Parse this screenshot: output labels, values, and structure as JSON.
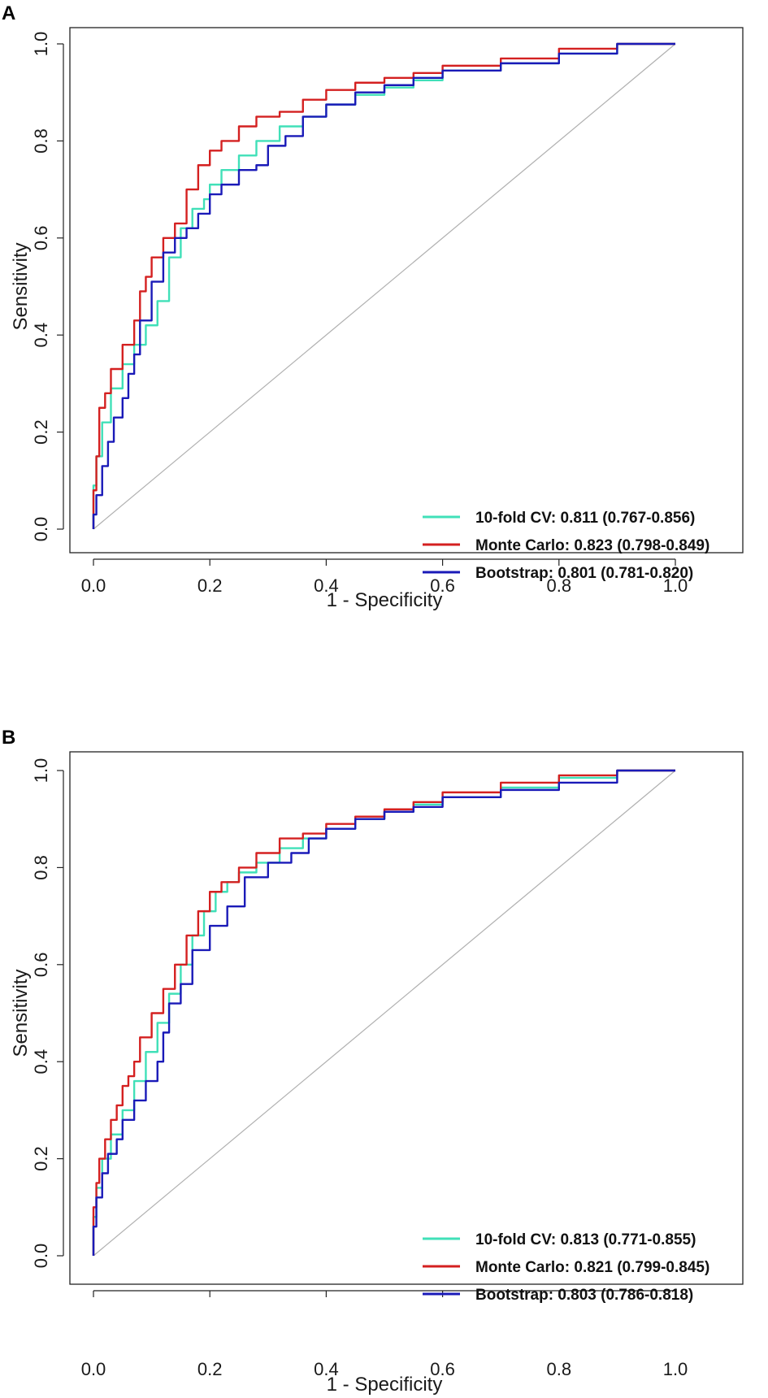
{
  "chart_data": [
    {
      "type": "line",
      "panel": "A",
      "xlabel": "1 - Specificity",
      "ylabel": "Sensitivity",
      "xlim": [
        0,
        1
      ],
      "ylim": [
        0,
        1
      ],
      "xticks": [
        "0.0",
        "0.2",
        "0.4",
        "0.6",
        "0.8",
        "1.0"
      ],
      "yticks": [
        "0.0",
        "0.2",
        "0.4",
        "0.6",
        "0.8",
        "1.0"
      ],
      "reference_line": {
        "x": [
          0,
          1
        ],
        "y": [
          0,
          1
        ],
        "color": "#b0b0b0"
      },
      "legend_position": "bottom-right",
      "series": [
        {
          "name": "10-fold CV",
          "label": "10-fold CV: 0.811 (0.767-0.856)",
          "color": "#40e0b8",
          "x": [
            0,
            0.005,
            0.015,
            0.03,
            0.05,
            0.07,
            0.09,
            0.11,
            0.13,
            0.15,
            0.17,
            0.19,
            0.2,
            0.22,
            0.25,
            0.28,
            0.32,
            0.36,
            0.4,
            0.45,
            0.5,
            0.55,
            0.6,
            0.7,
            0.8,
            0.9,
            1.0
          ],
          "y": [
            0,
            0.09,
            0.15,
            0.22,
            0.29,
            0.34,
            0.38,
            0.42,
            0.47,
            0.56,
            0.62,
            0.66,
            0.68,
            0.71,
            0.74,
            0.77,
            0.8,
            0.83,
            0.85,
            0.875,
            0.895,
            0.91,
            0.925,
            0.945,
            0.96,
            0.98,
            1.0
          ]
        },
        {
          "name": "Monte Carlo",
          "label": "Monte Carlo: 0.823 (0.798-0.849)",
          "color": "#d42020",
          "x": [
            0,
            0.005,
            0.01,
            0.02,
            0.03,
            0.05,
            0.07,
            0.08,
            0.09,
            0.1,
            0.12,
            0.14,
            0.16,
            0.18,
            0.2,
            0.22,
            0.25,
            0.28,
            0.32,
            0.36,
            0.4,
            0.45,
            0.5,
            0.55,
            0.6,
            0.7,
            0.8,
            0.9,
            1.0
          ],
          "y": [
            0,
            0.08,
            0.15,
            0.25,
            0.28,
            0.33,
            0.38,
            0.43,
            0.49,
            0.52,
            0.56,
            0.6,
            0.63,
            0.7,
            0.75,
            0.78,
            0.8,
            0.83,
            0.85,
            0.86,
            0.885,
            0.905,
            0.92,
            0.93,
            0.94,
            0.955,
            0.97,
            0.99,
            1.0
          ]
        },
        {
          "name": "Bootstrap",
          "label": "Bootstrap: 0.801 (0.781-0.820)",
          "color": "#1a1ab8",
          "x": [
            0,
            0.005,
            0.015,
            0.025,
            0.035,
            0.05,
            0.06,
            0.07,
            0.08,
            0.1,
            0.12,
            0.14,
            0.16,
            0.18,
            0.2,
            0.22,
            0.25,
            0.28,
            0.3,
            0.33,
            0.36,
            0.4,
            0.45,
            0.5,
            0.55,
            0.6,
            0.7,
            0.8,
            0.9,
            1.0
          ],
          "y": [
            0,
            0.03,
            0.07,
            0.13,
            0.18,
            0.23,
            0.27,
            0.32,
            0.36,
            0.43,
            0.51,
            0.57,
            0.6,
            0.62,
            0.65,
            0.69,
            0.71,
            0.74,
            0.75,
            0.79,
            0.81,
            0.85,
            0.875,
            0.9,
            0.915,
            0.93,
            0.945,
            0.96,
            0.98,
            1.0
          ]
        }
      ]
    },
    {
      "type": "line",
      "panel": "B",
      "xlabel": "1 - Specificity",
      "ylabel": "Sensitivity",
      "xlim": [
        0,
        1
      ],
      "ylim": [
        0,
        1
      ],
      "xticks": [
        "0.0",
        "0.2",
        "0.4",
        "0.6",
        "0.8",
        "1.0"
      ],
      "yticks": [
        "0.0",
        "0.2",
        "0.4",
        "0.6",
        "0.8",
        "1.0"
      ],
      "reference_line": {
        "x": [
          0,
          1
        ],
        "y": [
          0,
          1
        ],
        "color": "#b0b0b0"
      },
      "legend_position": "bottom-right",
      "series": [
        {
          "name": "10-fold CV",
          "label": "10-fold CV: 0.813 (0.771-0.855)",
          "color": "#40e0b8",
          "x": [
            0,
            0.005,
            0.015,
            0.03,
            0.05,
            0.07,
            0.09,
            0.11,
            0.13,
            0.15,
            0.17,
            0.19,
            0.21,
            0.23,
            0.25,
            0.28,
            0.32,
            0.36,
            0.4,
            0.45,
            0.5,
            0.55,
            0.6,
            0.7,
            0.8,
            0.9,
            1.0
          ],
          "y": [
            0,
            0.08,
            0.14,
            0.2,
            0.25,
            0.3,
            0.36,
            0.42,
            0.48,
            0.54,
            0.6,
            0.66,
            0.71,
            0.75,
            0.77,
            0.79,
            0.81,
            0.84,
            0.86,
            0.88,
            0.9,
            0.915,
            0.93,
            0.945,
            0.965,
            0.985,
            1.0
          ]
        },
        {
          "name": "Monte Carlo",
          "label": "Monte Carlo: 0.821 (0.799-0.845)",
          "color": "#d42020",
          "x": [
            0,
            0.005,
            0.01,
            0.02,
            0.03,
            0.04,
            0.05,
            0.06,
            0.07,
            0.08,
            0.1,
            0.12,
            0.14,
            0.16,
            0.18,
            0.2,
            0.22,
            0.25,
            0.28,
            0.32,
            0.36,
            0.4,
            0.45,
            0.5,
            0.55,
            0.6,
            0.7,
            0.8,
            0.9,
            1.0
          ],
          "y": [
            0,
            0.1,
            0.15,
            0.2,
            0.24,
            0.28,
            0.31,
            0.35,
            0.37,
            0.4,
            0.45,
            0.5,
            0.55,
            0.6,
            0.66,
            0.71,
            0.75,
            0.77,
            0.8,
            0.83,
            0.86,
            0.87,
            0.89,
            0.905,
            0.92,
            0.935,
            0.955,
            0.975,
            0.99,
            1.0
          ]
        },
        {
          "name": "Bootstrap",
          "label": "Bootstrap: 0.803 (0.786-0.818)",
          "color": "#1a1ab8",
          "x": [
            0,
            0.005,
            0.015,
            0.025,
            0.04,
            0.05,
            0.07,
            0.09,
            0.11,
            0.12,
            0.13,
            0.15,
            0.17,
            0.2,
            0.23,
            0.26,
            0.3,
            0.34,
            0.37,
            0.4,
            0.45,
            0.5,
            0.55,
            0.6,
            0.7,
            0.8,
            0.9,
            1.0
          ],
          "y": [
            0,
            0.06,
            0.12,
            0.17,
            0.21,
            0.24,
            0.28,
            0.32,
            0.36,
            0.4,
            0.46,
            0.52,
            0.56,
            0.63,
            0.68,
            0.72,
            0.78,
            0.81,
            0.83,
            0.86,
            0.88,
            0.9,
            0.915,
            0.925,
            0.945,
            0.96,
            0.975,
            1.0
          ]
        }
      ]
    }
  ]
}
